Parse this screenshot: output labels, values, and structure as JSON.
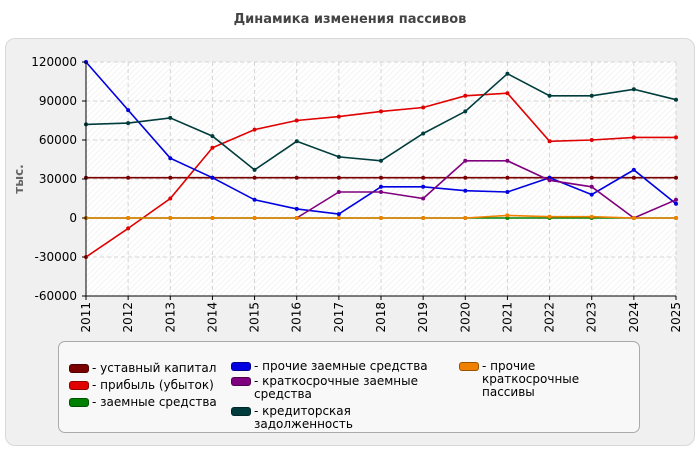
{
  "chart_data": {
    "type": "line",
    "title": "Динамика изменения пассивов",
    "ylabel": "тыс.",
    "xlabel": "",
    "x": [
      "2011",
      "2012",
      "2013",
      "2014",
      "2015",
      "2016",
      "2017",
      "2018",
      "2019",
      "2020",
      "2021",
      "2022",
      "2023",
      "2024",
      "2025"
    ],
    "ylim": [
      -60000,
      120000
    ],
    "yticks": [
      -60000,
      -30000,
      0,
      30000,
      60000,
      90000,
      120000
    ],
    "grid": true,
    "legend_position": "bottom",
    "series": [
      {
        "name": "уставный капитал",
        "color": "#7a0000",
        "values": [
          31000,
          31000,
          31000,
          31000,
          31000,
          31000,
          31000,
          31000,
          31000,
          31000,
          31000,
          31000,
          31000,
          31000,
          31000
        ]
      },
      {
        "name": "прибыль (убыток)",
        "color": "#e00000",
        "values": [
          -30000,
          -8000,
          15000,
          54000,
          68000,
          75000,
          78000,
          82000,
          85000,
          94000,
          96000,
          59000,
          60000,
          62000,
          62000
        ]
      },
      {
        "name": "заемные средства",
        "color": "#008000",
        "values": [
          0,
          0,
          0,
          0,
          0,
          0,
          0,
          0,
          0,
          0,
          0,
          0,
          0,
          0,
          0
        ]
      },
      {
        "name": "прочие заемные средства",
        "color": "#0000e0",
        "values": [
          120000,
          83000,
          46000,
          31000,
          14000,
          7000,
          3000,
          24000,
          24000,
          21000,
          20000,
          31000,
          18000,
          37000,
          11000
        ]
      },
      {
        "name": "краткосрочные заемные средства",
        "color": "#7f007f",
        "values": [
          null,
          null,
          null,
          null,
          null,
          0,
          20000,
          20000,
          15000,
          44000,
          44000,
          29000,
          24000,
          0,
          14000
        ]
      },
      {
        "name": "кредиторская задолженность",
        "color": "#003c3c",
        "values": [
          72000,
          73000,
          77000,
          63000,
          37000,
          59000,
          47000,
          44000,
          65000,
          82000,
          111000,
          94000,
          94000,
          99000,
          91000
        ]
      },
      {
        "name": "прочие краткосрочные пассивы",
        "color": "#f08000",
        "values": [
          0,
          0,
          0,
          0,
          0,
          0,
          0,
          0,
          0,
          0,
          2000,
          1000,
          1000,
          0,
          0
        ]
      }
    ]
  }
}
